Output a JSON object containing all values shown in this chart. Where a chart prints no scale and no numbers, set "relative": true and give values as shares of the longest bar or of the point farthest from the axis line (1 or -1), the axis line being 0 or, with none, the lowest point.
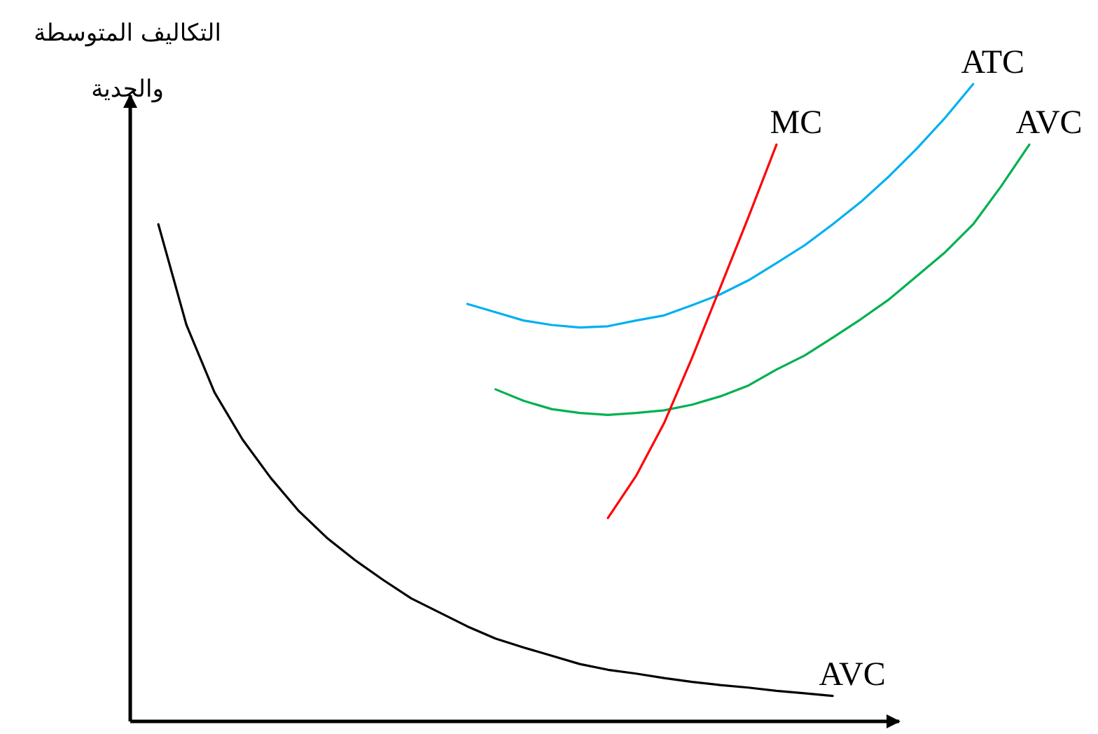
{
  "chart_data": {
    "type": "line",
    "relative": true,
    "ylabel": "التكاليف المتوسطة والحدية",
    "legend": false,
    "categories": [
      null,
      null,
      null,
      null,
      null,
      null,
      null,
      null,
      null,
      null,
      null,
      null,
      null,
      null,
      null,
      null,
      null,
      null,
      null,
      null,
      null,
      null,
      null,
      null,
      null,
      null,
      null,
      null,
      null,
      null,
      null,
      null,
      null
    ],
    "series": [
      {
        "name": "AVC",
        "color": "#000000",
        "values": [
          null,
          0.78,
          0.622,
          0.516,
          0.442,
          0.382,
          0.33,
          0.288,
          0.253,
          0.222,
          0.193,
          0.171,
          0.149,
          0.13,
          0.116,
          0.103,
          0.09,
          0.081,
          0.075,
          0.068,
          0.062,
          0.057,
          0.053,
          0.048,
          0.044,
          0.04,
          null,
          null,
          null,
          null,
          null,
          null,
          null
        ]
      },
      {
        "name": "ATC",
        "color": "#00b0f0",
        "values": [
          null,
          null,
          null,
          null,
          null,
          null,
          null,
          null,
          null,
          null,
          null,
          null,
          0.655,
          0.642,
          0.629,
          0.622,
          0.618,
          0.62,
          0.629,
          0.637,
          0.653,
          0.67,
          0.692,
          0.719,
          0.747,
          0.78,
          0.815,
          0.855,
          0.899,
          0.947,
          1,
          null,
          null
        ]
      },
      {
        "name": "AVC",
        "color": "#00b050",
        "values": [
          null,
          null,
          null,
          null,
          null,
          null,
          null,
          null,
          null,
          null,
          null,
          null,
          null,
          0.521,
          0.503,
          0.49,
          0.484,
          0.481,
          0.484,
          0.488,
          0.497,
          0.51,
          0.527,
          0.552,
          0.574,
          0.602,
          0.631,
          0.662,
          0.699,
          0.736,
          0.78,
          0.84,
          0.905
        ]
      },
      {
        "name": "MC",
        "color": "#ff0000",
        "values": [
          null,
          null,
          null,
          null,
          null,
          null,
          null,
          null,
          null,
          null,
          null,
          null,
          null,
          null,
          null,
          null,
          null,
          0.319,
          0.385,
          0.468,
          0.571,
          0.681,
          0.791,
          0.905,
          null,
          null,
          null,
          null,
          null,
          null,
          null,
          null,
          null
        ]
      }
    ]
  }
}
